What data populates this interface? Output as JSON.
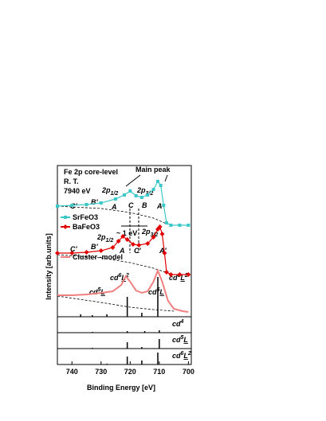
{
  "chart_data": {
    "type": "line",
    "x_label": "Binding Energy [eV]",
    "y_label": "Intensity [arb.units]",
    "xlim": [
      745,
      699
    ],
    "xticks": [
      740,
      730,
      720,
      710,
      700
    ],
    "ylim": [
      0,
      190
    ],
    "annotations": {
      "title_lines": [
        "Fe 2p core-level",
        "R. T.",
        "7940 eV"
      ],
      "main_peak": "Main peak",
      "p12": {
        "text": "2p",
        "sub": "1/2"
      },
      "p32": {
        "text": "2p",
        "sub": "3/2"
      },
      "sr_labels": [
        "C'",
        "B'",
        "A",
        "C",
        "B",
        "A"
      ],
      "ba_p12": {
        "text": "2p",
        "sub": "1/2"
      },
      "ba_p32": {
        "text": "2p",
        "sub": "3/2"
      },
      "ba_labels": [
        "C'",
        "B'",
        "A",
        "C'",
        "A'"
      ],
      "ev": "~ 1 eV",
      "cluster_labels": [
        {
          "base": "cd",
          "sup": "5",
          "tail": "L"
        },
        {
          "base": "cd",
          "sup": "6",
          "tail": "L",
          "tail_sup": "2"
        },
        {
          "base": "cd",
          "sup": "5",
          "tail": "L"
        },
        {
          "base": "cd",
          "sup": "6",
          "tail": "L",
          "tail_sup": "2"
        }
      ]
    },
    "series": [
      {
        "name": "SrFeO3",
        "color": "#3cc8c8",
        "marker": "square",
        "x": [
          745,
          740,
          735,
          730,
          725,
          722,
          720,
          718,
          716,
          714,
          712,
          710.5,
          709.5,
          708.5,
          707.5,
          706,
          703,
          700
        ],
        "values": [
          139,
          140,
          141,
          143,
          148,
          153,
          158,
          152,
          150,
          153,
          160,
          170,
          165,
          140,
          118,
          115,
          115,
          115
        ]
      },
      {
        "name": "BaFeO3",
        "color": "#e00000",
        "marker": "diamond",
        "x": [
          745,
          740,
          735,
          730,
          726,
          724,
          722.5,
          721,
          719,
          717,
          714,
          712,
          710.5,
          709.8,
          709,
          708.2,
          707.5,
          706,
          703,
          700
        ],
        "values": [
          80,
          80,
          81,
          83,
          87,
          95,
          101,
          97,
          91,
          90,
          92,
          100,
          110,
          113,
          104,
          80,
          56,
          53,
          53,
          53
        ]
      },
      {
        "name": "Cluster -model",
        "color": "#f08080",
        "marker": "none",
        "x": [
          745,
          740,
          735,
          730,
          726,
          723,
          721.5,
          720,
          718,
          716,
          714,
          712,
          710.5,
          709,
          707,
          705,
          702,
          700
        ],
        "values": [
          27,
          27,
          28,
          30,
          32,
          40,
          51,
          44,
          33,
          30,
          32,
          44,
          58,
          44,
          20,
          10,
          7,
          6
        ]
      }
    ],
    "backgrounds": [
      {
        "color": "#000000",
        "x": [
          745,
          730,
          720,
          712,
          707
        ],
        "values": [
          139,
          136,
          131,
          124,
          116
        ]
      },
      {
        "color": "#000000",
        "x": [
          745,
          730,
          720,
          712,
          707
        ],
        "values": [
          78,
          74,
          68,
          61,
          55
        ]
      },
      {
        "color": "#000000",
        "x": [
          745,
          730,
          720,
          712,
          705
        ],
        "values": [
          26,
          18,
          12,
          9,
          7
        ]
      }
    ],
    "sticks": {
      "x": [
        737,
        733,
        728,
        721,
        716,
        710.5
      ],
      "values": [
        3,
        2,
        3,
        25,
        5,
        50
      ]
    },
    "panels": [
      {
        "label": {
          "base": "cd",
          "sup": "4"
        },
        "ylim": [
          0,
          20
        ],
        "x": [
          733,
          721,
          715,
          710
        ],
        "values": [
          1,
          2,
          2,
          3
        ]
      },
      {
        "label": {
          "base": "cd",
          "sup": "5",
          "tail": "L"
        },
        "ylim": [
          0,
          20
        ],
        "x": [
          733,
          721,
          716,
          710
        ],
        "values": [
          1,
          8,
          2,
          12
        ]
      },
      {
        "label": {
          "base": "cd",
          "sup": "6",
          "tail": "L",
          "tail_sup": "2"
        },
        "ylim": [
          0,
          20
        ],
        "x": [
          728,
          721,
          716,
          710.5
        ],
        "values": [
          1,
          10,
          5,
          15
        ]
      }
    ]
  }
}
